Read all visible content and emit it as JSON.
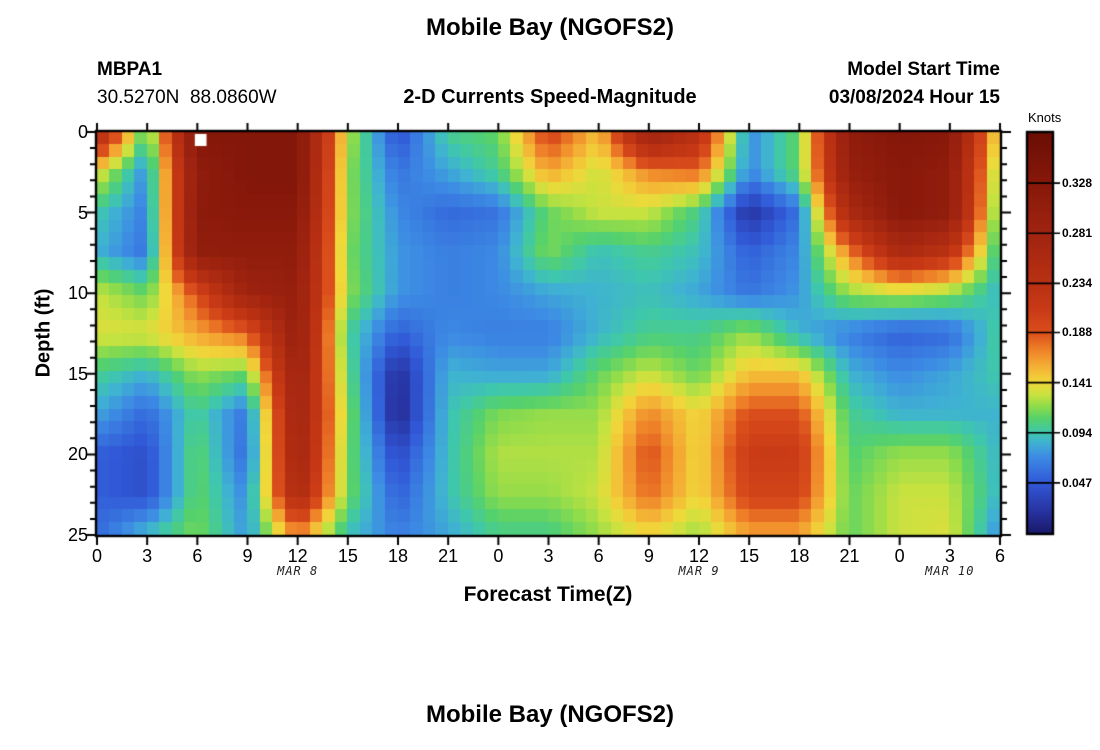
{
  "header": {
    "title": "Mobile Bay (NGOFS2)",
    "station_id": "MBPA1",
    "station_coords": "30.5270N  88.0860W",
    "subtitle": "2-D Currents Speed-Magnitude",
    "model_start_label": "Model Start Time",
    "model_start_value": "03/08/2024 Hour 15"
  },
  "footer": {
    "next_plot_title": "Mobile Bay (NGOFS2)"
  },
  "chart_data": {
    "type": "heatmap",
    "title": "Mobile Bay (NGOFS2)",
    "subtitle": "2-D Currents Speed-Magnitude",
    "xlabel": "Forecast Time(Z)",
    "ylabel": "Depth (ft)",
    "x_hours": [
      0,
      3,
      6,
      9,
      12,
      15,
      18,
      21,
      24,
      27,
      30,
      33,
      36,
      39,
      42,
      45,
      48,
      51,
      54
    ],
    "x_tick_labels": [
      "0",
      "3",
      "6",
      "9",
      "12",
      "15",
      "18",
      "21",
      "0",
      "3",
      "6",
      "9",
      "12",
      "15",
      "18",
      "21",
      "0",
      "3",
      "6"
    ],
    "day_labels": [
      {
        "text": "MAR 8",
        "hour": 12
      },
      {
        "text": "MAR 9",
        "hour": 36
      },
      {
        "text": "MAR 10",
        "hour": 51
      }
    ],
    "depths_ft": [
      0,
      2.5,
      5,
      7.5,
      10,
      12.5,
      15,
      17.5,
      20,
      22.5,
      25
    ],
    "y_tick_values": [
      0,
      5,
      10,
      15,
      20,
      25
    ],
    "y_tick_labels": [
      "0",
      "5",
      "10",
      "15",
      "20",
      "25"
    ],
    "ylim": [
      0,
      25
    ],
    "grid": false,
    "values_knots": [
      [
        0.26,
        0.1,
        0.33,
        0.335,
        0.335,
        0.13,
        0.04,
        0.1,
        0.11,
        0.2,
        0.15,
        0.29,
        0.24,
        0.07,
        0.11,
        0.31,
        0.335,
        0.325,
        0.13
      ],
      [
        0.14,
        0.07,
        0.31,
        0.335,
        0.335,
        0.12,
        0.06,
        0.08,
        0.1,
        0.16,
        0.13,
        0.17,
        0.18,
        0.07,
        0.11,
        0.3,
        0.325,
        0.31,
        0.11
      ],
      [
        0.095,
        0.065,
        0.315,
        0.325,
        0.325,
        0.12,
        0.07,
        0.055,
        0.06,
        0.11,
        0.13,
        0.13,
        0.1,
        0.02,
        0.06,
        0.26,
        0.325,
        0.31,
        0.1
      ],
      [
        0.085,
        0.06,
        0.31,
        0.31,
        0.31,
        0.115,
        0.075,
        0.065,
        0.07,
        0.115,
        0.09,
        0.1,
        0.09,
        0.05,
        0.07,
        0.17,
        0.26,
        0.23,
        0.09
      ],
      [
        0.13,
        0.11,
        0.19,
        0.285,
        0.3,
        0.12,
        0.075,
        0.065,
        0.07,
        0.08,
        0.085,
        0.09,
        0.08,
        0.06,
        0.075,
        0.12,
        0.13,
        0.12,
        0.085
      ],
      [
        0.135,
        0.135,
        0.16,
        0.18,
        0.3,
        0.1,
        0.05,
        0.07,
        0.065,
        0.065,
        0.085,
        0.1,
        0.1,
        0.12,
        0.085,
        0.065,
        0.05,
        0.055,
        0.1
      ],
      [
        0.1,
        0.085,
        0.12,
        0.11,
        0.29,
        0.11,
        0.015,
        0.085,
        0.08,
        0.08,
        0.11,
        0.13,
        0.11,
        0.15,
        0.15,
        0.085,
        0.07,
        0.08,
        0.095
      ],
      [
        0.08,
        0.055,
        0.1,
        0.06,
        0.285,
        0.12,
        0.01,
        0.09,
        0.115,
        0.12,
        0.12,
        0.17,
        0.14,
        0.19,
        0.19,
        0.1,
        0.085,
        0.085,
        0.085
      ],
      [
        0.05,
        0.04,
        0.11,
        0.055,
        0.28,
        0.115,
        0.035,
        0.09,
        0.125,
        0.125,
        0.125,
        0.19,
        0.14,
        0.21,
        0.21,
        0.105,
        0.12,
        0.12,
        0.085
      ],
      [
        0.05,
        0.04,
        0.11,
        0.07,
        0.26,
        0.115,
        0.05,
        0.09,
        0.12,
        0.12,
        0.13,
        0.18,
        0.14,
        0.2,
        0.2,
        0.11,
        0.13,
        0.13,
        0.085
      ],
      [
        0.055,
        0.09,
        0.115,
        0.075,
        0.17,
        0.09,
        0.065,
        0.08,
        0.1,
        0.1,
        0.12,
        0.14,
        0.12,
        0.16,
        0.16,
        0.11,
        0.13,
        0.135,
        0.07
      ]
    ],
    "missing_cell": {
      "hour_start": 5.85,
      "hour_end": 6.55,
      "depth_start": 0.12,
      "depth_end": 0.87,
      "color": "#ffffff"
    },
    "colorbar": {
      "label": "Knots",
      "min": 0,
      "max": 0.375,
      "ticks": [
        0.047,
        0.094,
        0.141,
        0.188,
        0.234,
        0.281,
        0.328
      ],
      "tick_labels": [
        "0.047",
        "0.094",
        "0.141",
        "0.188",
        "0.234",
        "0.281",
        "0.328"
      ]
    },
    "colormap": [
      [
        0.0,
        "#1b1a6d"
      ],
      [
        0.05,
        "#27319e"
      ],
      [
        0.125,
        "#3159d8"
      ],
      [
        0.19,
        "#3d8ce4"
      ],
      [
        0.225,
        "#3fb2d2"
      ],
      [
        0.25,
        "#3fc7ac"
      ],
      [
        0.285,
        "#55d16c"
      ],
      [
        0.315,
        "#8cdb4c"
      ],
      [
        0.345,
        "#c8e23f"
      ],
      [
        0.376,
        "#f0d83a"
      ],
      [
        0.42,
        "#f4ac34"
      ],
      [
        0.46,
        "#ee7f28"
      ],
      [
        0.5,
        "#db4f1c"
      ],
      [
        0.56,
        "#c93a16"
      ],
      [
        0.625,
        "#b93112"
      ],
      [
        0.75,
        "#a02410"
      ],
      [
        0.875,
        "#87180a"
      ],
      [
        1.0,
        "#6b0e05"
      ]
    ],
    "axis_color": "#000000"
  }
}
